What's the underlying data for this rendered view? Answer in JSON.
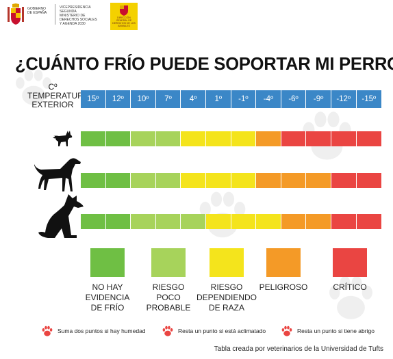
{
  "header": {
    "gov_text": [
      "GOBIERNO",
      "DE ESPAÑA"
    ],
    "ministry_text": [
      "VICEPRESIDENCIA",
      "SEGUNDA",
      "MINISTERIO DE",
      "DERECHOS SOCIALES",
      "Y AGENDA 2030"
    ],
    "yellow_logo_text": [
      "DIRECCIÓN",
      "GENERAL DE",
      "DERECHOS DE LOS",
      "ANIMALES"
    ]
  },
  "title": "¿CUÁNTO FRÍO PUEDE SOPORTAR MI PERRO?",
  "temperature_label": [
    "Cº",
    "TEMPERATURA",
    "EXTERIOR"
  ],
  "temperatures": [
    "15º",
    "12º",
    "10º",
    "7º",
    "4º",
    "1º",
    "-1º",
    "-4º",
    "-6º",
    "-9º",
    "-12º",
    "-15º"
  ],
  "colors": {
    "scale": "#3b87c7",
    "no_risk": "#6fbf44",
    "low_risk": "#a7d35b",
    "breed_risk": "#f4e41c",
    "dangerous": "#f49a27",
    "critical": "#ea4542",
    "paw": "#ea4542"
  },
  "rows": [
    {
      "dog": "small-dog-icon",
      "levels": [
        "no_risk",
        "no_risk",
        "low_risk",
        "low_risk",
        "breed_risk",
        "breed_risk",
        "breed_risk",
        "dangerous",
        "critical",
        "critical",
        "critical",
        "critical"
      ]
    },
    {
      "dog": "medium-dog-icon",
      "levels": [
        "no_risk",
        "no_risk",
        "low_risk",
        "low_risk",
        "breed_risk",
        "breed_risk",
        "breed_risk",
        "dangerous",
        "dangerous",
        "dangerous",
        "critical",
        "critical"
      ]
    },
    {
      "dog": "large-dog-icon",
      "levels": [
        "no_risk",
        "no_risk",
        "low_risk",
        "low_risk",
        "low_risk",
        "breed_risk",
        "breed_risk",
        "breed_risk",
        "dangerous",
        "dangerous",
        "critical",
        "critical"
      ]
    }
  ],
  "legend": [
    {
      "key": "no_risk",
      "lines": [
        "NO HAY",
        "EVIDENCIA",
        "DE FRÍO"
      ]
    },
    {
      "key": "low_risk",
      "lines": [
        "RIESGO",
        "POCO",
        "PROBABLE"
      ]
    },
    {
      "key": "breed_risk",
      "lines": [
        "RIESGO",
        "DEPENDIENDO",
        "DE RAZA"
      ]
    },
    {
      "key": "dangerous",
      "lines": [
        "PELIGROSO"
      ]
    },
    {
      "key": "critical",
      "lines": [
        "CRÍTICO"
      ]
    }
  ],
  "notes": [
    "Suma dos puntos si hay humedad",
    "Resta un punto si está aclimatado",
    "Resta un punto si tiene abrigo"
  ],
  "credit": "Tabla creada por veterinarios de la Universidad de Tufts"
}
